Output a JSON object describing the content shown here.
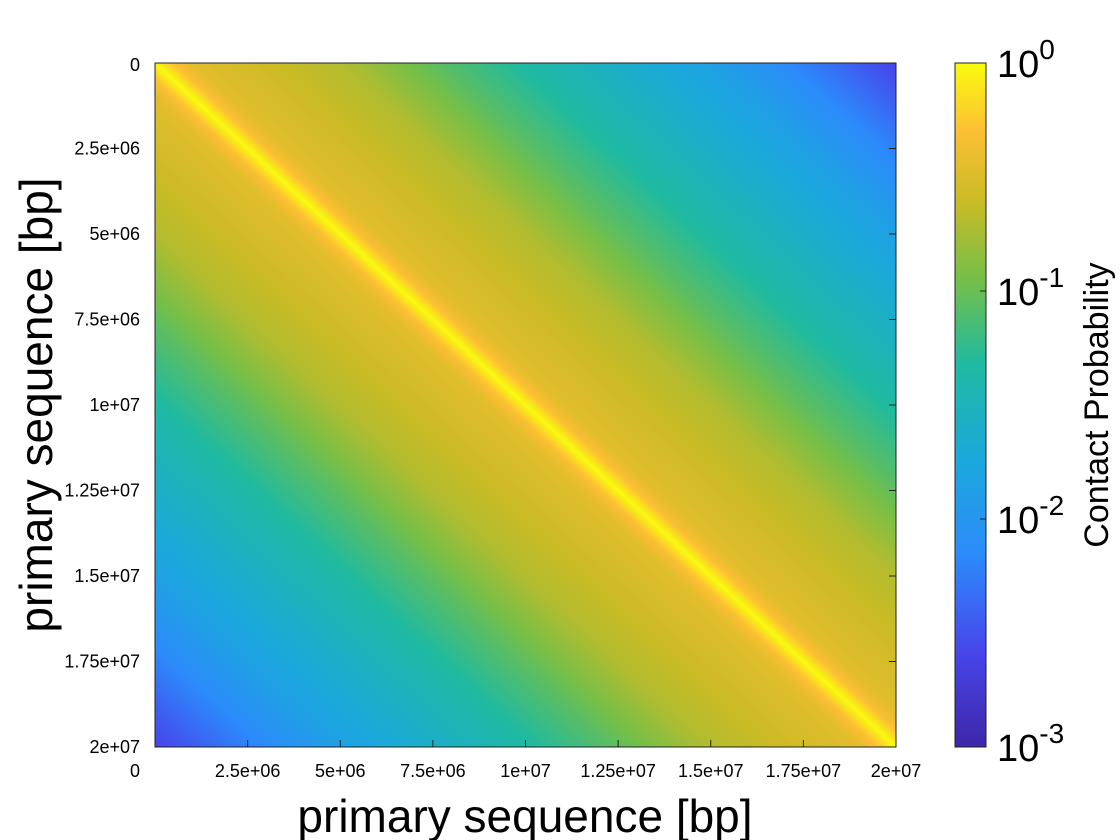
{
  "chart_data": {
    "type": "heatmap",
    "title": "",
    "xlabel": "primary sequence [bp]",
    "ylabel": "primary sequence [bp]",
    "xlim": [
      0,
      20000000
    ],
    "ylim": [
      0,
      20000000
    ],
    "y_reversed": true,
    "x_ticks": [
      {
        "value": 0,
        "label": "0"
      },
      {
        "value": 2500000,
        "label": "2.5e+06"
      },
      {
        "value": 5000000,
        "label": "5e+06"
      },
      {
        "value": 7500000,
        "label": "7.5e+06"
      },
      {
        "value": 10000000,
        "label": "1e+07"
      },
      {
        "value": 12500000,
        "label": "1.25e+07"
      },
      {
        "value": 15000000,
        "label": "1.5e+07"
      },
      {
        "value": 17500000,
        "label": "1.75e+07"
      },
      {
        "value": 20000000,
        "label": "2e+07"
      }
    ],
    "y_ticks": [
      {
        "value": 0,
        "label": "0"
      },
      {
        "value": 2500000,
        "label": "2.5e+06"
      },
      {
        "value": 5000000,
        "label": "5e+06"
      },
      {
        "value": 7500000,
        "label": "7.5e+06"
      },
      {
        "value": 10000000,
        "label": "1e+07"
      },
      {
        "value": 12500000,
        "label": "1.25e+07"
      },
      {
        "value": 15000000,
        "label": "1.5e+07"
      },
      {
        "value": 17500000,
        "label": "1.75e+07"
      },
      {
        "value": 20000000,
        "label": "2e+07"
      }
    ],
    "colorbar": {
      "label": "Contact Probability",
      "scale": "log",
      "range": [
        0.001,
        1
      ],
      "colormap": "parula",
      "ticks": [
        {
          "value": 1,
          "base": "10",
          "exp": "0"
        },
        {
          "value": 0.1,
          "base": "10",
          "exp": "-1"
        },
        {
          "value": 0.01,
          "base": "10",
          "exp": "-2"
        },
        {
          "value": 0.001,
          "base": "10",
          "exp": "-3"
        }
      ]
    },
    "profile": {
      "description_of_values": "contact probability as a function of genomic separation |x - y| in bp",
      "separation": [
        0,
        500000,
        1000000,
        2500000,
        5000000,
        7500000,
        10000000,
        12500000,
        15000000,
        17500000,
        20000000
      ],
      "probability": [
        1.0,
        0.5,
        0.35,
        0.28,
        0.2,
        0.09,
        0.045,
        0.025,
        0.014,
        0.006,
        0.0025
      ]
    },
    "grid": false,
    "legend": "none"
  }
}
